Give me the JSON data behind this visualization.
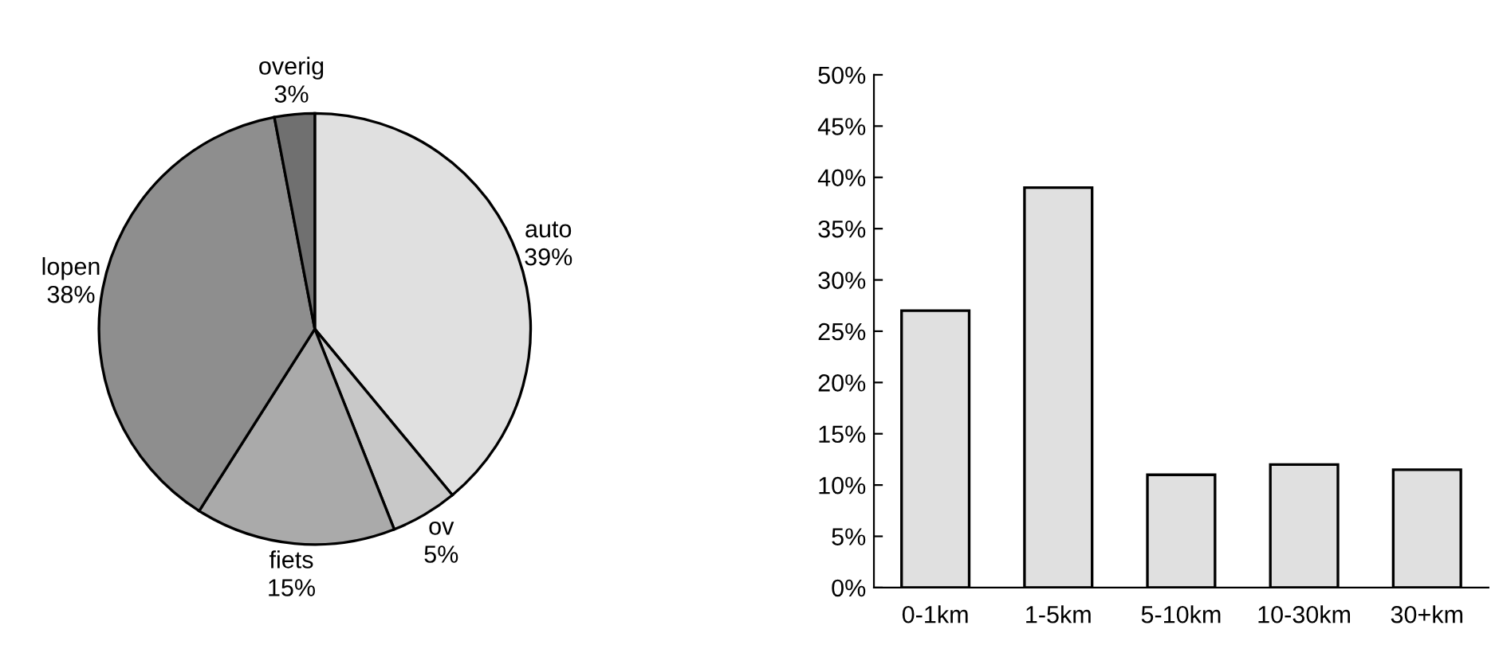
{
  "chart_data": [
    {
      "type": "pie",
      "categories": [
        "auto",
        "ov",
        "fiets",
        "lopen",
        "overig"
      ],
      "values": [
        39,
        5,
        15,
        38,
        3
      ],
      "value_labels": [
        "39%",
        "5%",
        "15%",
        "38%",
        "3%"
      ],
      "colors": [
        "#e0e0e0",
        "#c8c8c8",
        "#aaaaaa",
        "#8e8e8e",
        "#707070"
      ]
    },
    {
      "type": "bar",
      "categories": [
        "0-1km",
        "1-5km",
        "5-10km",
        "10-30km",
        "30+km"
      ],
      "values": [
        27,
        39,
        11,
        12,
        11.5
      ],
      "color": "#e0e0e0",
      "ylim": [
        0,
        50
      ],
      "yticks": [
        {
          "value": 0,
          "label": "0%"
        },
        {
          "value": 5,
          "label": "5%"
        },
        {
          "value": 10,
          "label": "10%"
        },
        {
          "value": 15,
          "label": "15%"
        },
        {
          "value": 20,
          "label": "20%"
        },
        {
          "value": 25,
          "label": "25%"
        },
        {
          "value": 30,
          "label": "30%"
        },
        {
          "value": 35,
          "label": "35%"
        },
        {
          "value": 40,
          "label": "40%"
        },
        {
          "value": 45,
          "label": "45%"
        },
        {
          "value": 50,
          "label": "50%"
        }
      ],
      "grid": false
    }
  ]
}
